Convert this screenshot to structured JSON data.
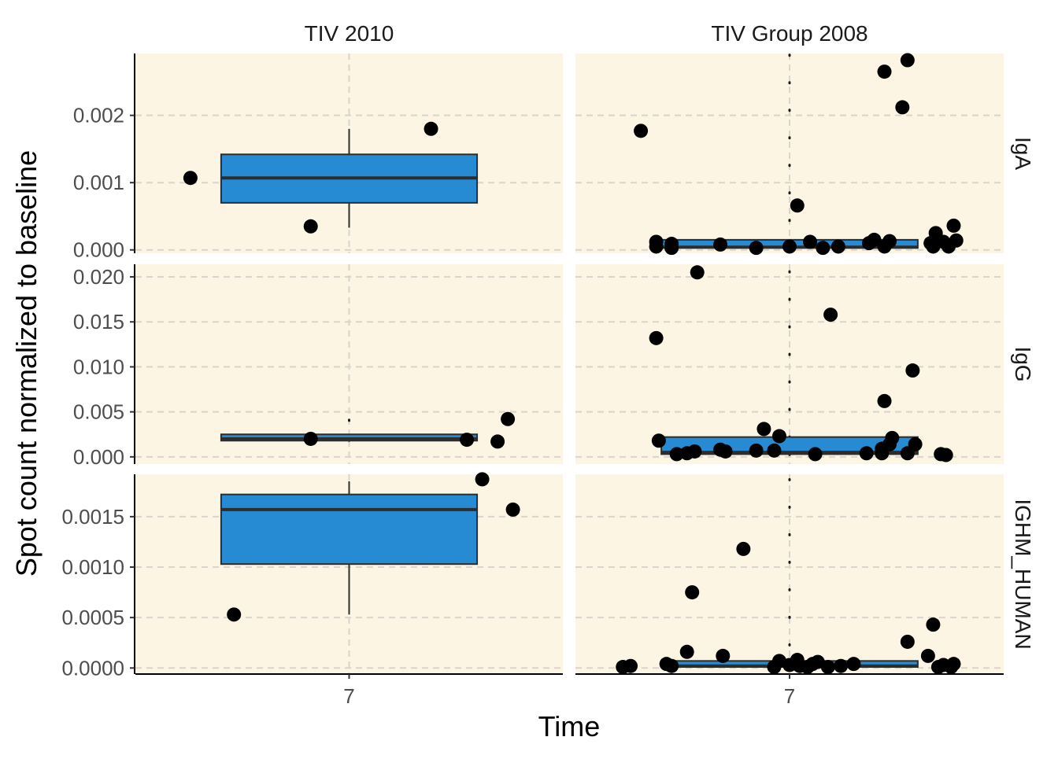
{
  "chart_data": {
    "type": "box",
    "xlabel": "Time",
    "ylabel": "Spot count normalized to baseline",
    "x_tick": "7",
    "columns": [
      "TIV 2010",
      "TIV Group 2008"
    ],
    "rows": [
      "IgA",
      "IgG",
      "IGHM_HUMAN"
    ],
    "scales": {
      "IgA": {
        "ylim": [
          -5e-05,
          0.00292
        ],
        "ticks": [
          0,
          0.001,
          0.002
        ],
        "tick_labels": [
          "0.000",
          "0.001",
          "0.002"
        ]
      },
      "IgG": {
        "ylim": [
          -0.0008,
          0.0214
        ],
        "ticks": [
          0,
          0.005,
          0.01,
          0.015,
          0.02
        ],
        "tick_labels": [
          "0.000",
          "0.005",
          "0.010",
          "0.015",
          "0.020"
        ]
      },
      "IGHM_HUMAN": {
        "ylim": [
          -6e-05,
          0.00192
        ],
        "ticks": [
          0,
          0.0005,
          0.001,
          0.0015
        ],
        "tick_labels": [
          "0.0000",
          "0.0005",
          "0.0010",
          "0.0015"
        ]
      }
    },
    "panels": [
      {
        "column": "TIV 2010",
        "row": "IgA",
        "box": {
          "q1": 0.0007,
          "median": 0.00107,
          "q3": 0.00142,
          "whisker_low": 0.00033,
          "whisker_high": 0.0018
        },
        "points": [
          [
            -0.62,
            0.00107
          ],
          [
            -0.15,
            0.00035
          ],
          [
            0.32,
            0.0018
          ]
        ]
      },
      {
        "column": "TIV Group 2008",
        "row": "IgA",
        "box": {
          "q1": 3e-05,
          "median": 4e-05,
          "q3": 0.00015,
          "whisker_low": 0.0,
          "whisker_high": 0.0029,
          "whisker_dotted": true
        },
        "points": [
          [
            -0.58,
            0.00177
          ],
          [
            -0.52,
            5e-05
          ],
          [
            -0.52,
            0.00012
          ],
          [
            -0.46,
            3e-05
          ],
          [
            -0.46,
            9e-05
          ],
          [
            -0.27,
            8e-05
          ],
          [
            -0.13,
            3e-05
          ],
          [
            0.0,
            5e-05
          ],
          [
            0.03,
            0.00066
          ],
          [
            0.08,
            0.00012
          ],
          [
            0.13,
            3e-05
          ],
          [
            0.19,
            5e-05
          ],
          [
            0.31,
            0.0001
          ],
          [
            0.33,
            0.00015
          ],
          [
            0.37,
            5e-05
          ],
          [
            0.39,
            0.00013
          ],
          [
            0.37,
            0.00265
          ],
          [
            0.44,
            0.00212
          ],
          [
            0.46,
            0.00282
          ],
          [
            0.55,
            0.0001
          ],
          [
            0.56,
            5e-05
          ],
          [
            0.57,
            0.00025
          ],
          [
            0.6,
            0.00012
          ],
          [
            0.62,
            5e-05
          ],
          [
            0.64,
            0.00036
          ],
          [
            0.65,
            0.00014
          ]
        ]
      },
      {
        "column": "TIV 2010",
        "row": "IgG",
        "box": {
          "q1": 0.0018,
          "median": 0.002,
          "q3": 0.0025,
          "whisker_low": 0.0018,
          "whisker_high": 0.0041,
          "whisker_dotted": true
        },
        "points": [
          [
            -0.15,
            0.002
          ],
          [
            0.46,
            0.0019
          ],
          [
            0.58,
            0.0017
          ],
          [
            0.62,
            0.0042
          ]
        ]
      },
      {
        "column": "TIV Group 2008",
        "row": "IgG",
        "box": {
          "q1": 0.0003,
          "median": 0.0005,
          "q3": 0.0022,
          "whisker_low": 0.0,
          "whisker_high": 0.0206,
          "whisker_dotted": true
        },
        "points": [
          [
            -0.52,
            0.0132
          ],
          [
            -0.51,
            0.0018
          ],
          [
            -0.36,
            0.0205
          ],
          [
            -0.44,
            0.0003
          ],
          [
            -0.4,
            0.0004
          ],
          [
            -0.37,
            0.0006
          ],
          [
            -0.27,
            0.0008
          ],
          [
            -0.25,
            0.0006
          ],
          [
            -0.13,
            0.0007
          ],
          [
            -0.1,
            0.0031
          ],
          [
            -0.06,
            0.0007
          ],
          [
            -0.04,
            0.0023
          ],
          [
            0.1,
            0.0003
          ],
          [
            0.16,
            0.0158
          ],
          [
            0.3,
            0.0004
          ],
          [
            0.36,
            0.0004
          ],
          [
            0.36,
            0.0009
          ],
          [
            0.37,
            0.0062
          ],
          [
            0.39,
            0.0014
          ],
          [
            0.4,
            0.0021
          ],
          [
            0.46,
            0.0004
          ],
          [
            0.48,
            0.0096
          ],
          [
            0.49,
            0.0014
          ],
          [
            0.59,
            0.0003
          ],
          [
            0.61,
            0.0002
          ]
        ]
      },
      {
        "column": "TIV 2010",
        "row": "IGHM_HUMAN",
        "box": {
          "q1": 0.00103,
          "median": 0.00157,
          "q3": 0.00172,
          "whisker_low": 0.00053,
          "whisker_high": 0.00185
        },
        "points": [
          [
            -0.45,
            0.00053
          ],
          [
            0.52,
            0.00187
          ],
          [
            0.64,
            0.00157
          ]
        ]
      },
      {
        "column": "TIV Group 2008",
        "row": "IGHM_HUMAN",
        "box": {
          "q1": 1e-05,
          "median": 2e-05,
          "q3": 7e-05,
          "whisker_low": 0.0,
          "whisker_high": 0.00187,
          "whisker_dotted": true
        },
        "points": [
          [
            -0.65,
            1e-05
          ],
          [
            -0.62,
            2e-05
          ],
          [
            -0.48,
            4e-05
          ],
          [
            -0.46,
            2e-05
          ],
          [
            -0.4,
            0.00016
          ],
          [
            -0.38,
            0.00075
          ],
          [
            -0.26,
            0.00012
          ],
          [
            -0.18,
            0.00118
          ],
          [
            -0.06,
            1e-05
          ],
          [
            -0.04,
            7e-05
          ],
          [
            0.0,
            3e-05
          ],
          [
            0.03,
            8e-05
          ],
          [
            0.04,
            2e-05
          ],
          [
            0.07,
            1e-05
          ],
          [
            0.09,
            4e-05
          ],
          [
            0.11,
            6e-05
          ],
          [
            0.15,
            1e-05
          ],
          [
            0.2,
            2e-05
          ],
          [
            0.25,
            4e-05
          ],
          [
            0.46,
            0.00026
          ],
          [
            0.54,
            0.00012
          ],
          [
            0.56,
            0.00043
          ],
          [
            0.58,
            1e-05
          ],
          [
            0.6,
            3e-05
          ],
          [
            0.63,
            1e-05
          ],
          [
            0.64,
            4e-05
          ]
        ]
      }
    ],
    "colors": {
      "panel_bg": "#fcf5e3",
      "box_fill": "#268bd2",
      "box_edge": "#2d2d2d",
      "point": "#000000",
      "grid": "#d9d4cc",
      "strip_text": "#1a1a1a",
      "tick_text": "#4d4d4d"
    }
  }
}
